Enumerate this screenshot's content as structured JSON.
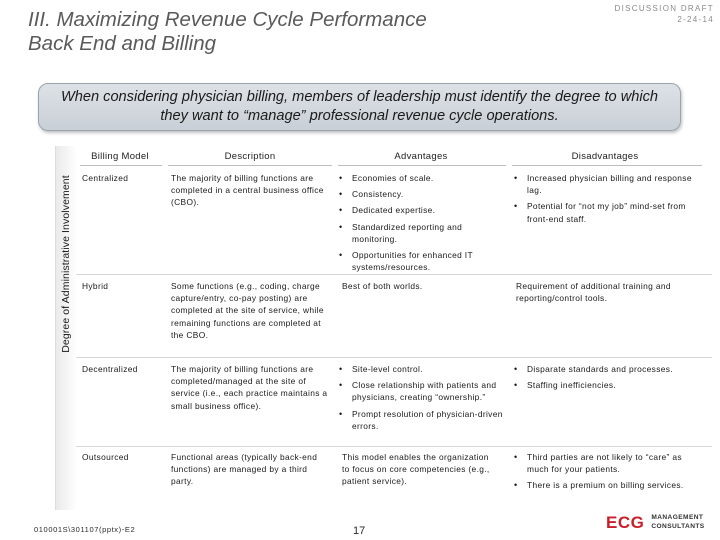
{
  "slide": {
    "title_line1": "III.  Maximizing Revenue Cycle Performance",
    "title_line2": "Back End and Billing",
    "draft_label": "DISCUSSION DRAFT",
    "draft_date": "2-24-14",
    "callout": "When considering physician billing, members of leadership must identify the degree to which they want to “manage” professional revenue cycle operations.",
    "side_label": "Degree of Administrative Involvement",
    "footer_code": "010001S\\301107(pptx)-E2",
    "page_number": "17"
  },
  "logo": {
    "mark": "ECG",
    "line1": "MANAGEMENT",
    "line2": "CONSULTANTS"
  },
  "table": {
    "headers": [
      "Billing Model",
      "Description",
      "Advantages",
      "Disadvantages"
    ],
    "rows": [
      {
        "model": "Centralized",
        "description": "The majority of billing functions are completed in a central business office (CBO).",
        "advantages": [
          "Economies of scale.",
          "Consistency.",
          "Dedicated expertise.",
          "Standardized reporting and monitoring.",
          "Opportunities for enhanced IT systems/resources."
        ],
        "disadvantages": [
          "Increased physician billing and response lag.",
          "Potential for “not my job” mind-set from front-end staff."
        ]
      },
      {
        "model": "Hybrid",
        "description": "Some functions (e.g., coding, charge capture/entry, co-pay posting) are completed at the site of service, while remaining functions are completed at the CBO.",
        "advantages_text": "Best of both worlds.",
        "disadvantages_text": "Requirement of additional training and reporting/control tools."
      },
      {
        "model": "Decentralized",
        "description": "The majority of billing functions are completed/managed at the site of service (i.e., each practice maintains a small business office).",
        "advantages": [
          "Site-level control.",
          "Close relationship with patients and physicians, creating “ownership.”",
          "Prompt resolution of physician-driven errors."
        ],
        "disadvantages": [
          "Disparate standards and processes.",
          "Staffing inefficiencies."
        ]
      },
      {
        "model": "Outsourced",
        "description": "Functional areas (typically back-end functions) are managed by a third party.",
        "advantages_text": "This model enables the organization to focus on core competencies (e.g., patient service).",
        "disadvantages": [
          "Third parties are not likely to “care” as much for your patients.",
          "There is a premium on billing services."
        ]
      }
    ]
  }
}
